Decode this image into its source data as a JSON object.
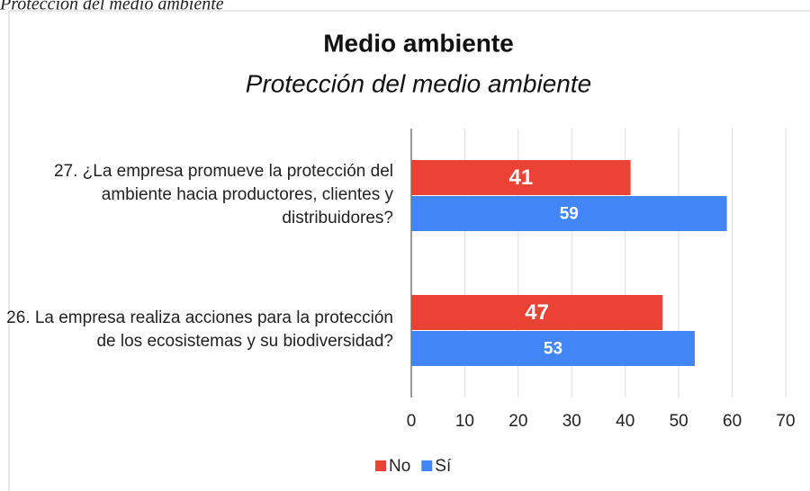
{
  "caption": "Protección del medio ambiente",
  "chart_data": {
    "type": "bar",
    "orientation": "horizontal",
    "title": "Medio ambiente",
    "subtitle": "Protección del medio ambiente",
    "categories": [
      "27. ¿La empresa promueve la protección del ambiente hacia productores, clientes y distribuidores?",
      "26. La empresa realiza acciones para la protección de los ecosistemas y su biodiversidad?"
    ],
    "series": [
      {
        "name": "No",
        "color": "#ea4335",
        "values": [
          41,
          47
        ]
      },
      {
        "name": "Sí",
        "color": "#4285f4",
        "values": [
          59,
          53
        ]
      }
    ],
    "xlim": [
      0,
      70
    ],
    "xticks": [
      0,
      10,
      20,
      30,
      40,
      50,
      60,
      70
    ],
    "grid": true,
    "legend": "bottom"
  }
}
